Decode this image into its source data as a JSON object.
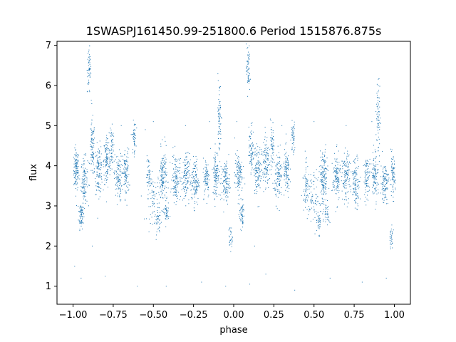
{
  "chart_data": {
    "type": "scatter",
    "title": "1SWASPJ161450.99-251800.6 Period 1515876.875s",
    "xlabel": "phase",
    "ylabel": "flux",
    "xlim": [
      -1.1,
      1.1
    ],
    "ylim": [
      0.55,
      7.1
    ],
    "xticks": [
      -1.0,
      -0.75,
      -0.5,
      -0.25,
      0.0,
      0.25,
      0.5,
      0.75,
      1.0
    ],
    "xtick_labels": [
      "−1.00",
      "−0.75",
      "−0.50",
      "−0.25",
      "0.00",
      "0.25",
      "0.50",
      "0.75",
      "1.00"
    ],
    "yticks": [
      1,
      2,
      3,
      4,
      5,
      6,
      7
    ],
    "ytick_labels": [
      "1",
      "2",
      "3",
      "4",
      "5",
      "6",
      "7"
    ],
    "grid": false,
    "color": "#1f77b4",
    "clusters": [
      {
        "x": -0.98,
        "y": 3.9,
        "sx": 0.008,
        "sy": 0.25,
        "n": 120
      },
      {
        "x": -0.95,
        "y": 2.8,
        "sx": 0.008,
        "sy": 0.18,
        "n": 70
      },
      {
        "x": -0.93,
        "y": 3.6,
        "sx": 0.01,
        "sy": 0.3,
        "n": 110
      },
      {
        "x": -0.9,
        "y": 6.4,
        "sx": 0.006,
        "sy": 0.3,
        "n": 60
      },
      {
        "x": -0.88,
        "y": 4.4,
        "sx": 0.008,
        "sy": 0.35,
        "n": 90
      },
      {
        "x": -0.84,
        "y": 3.9,
        "sx": 0.012,
        "sy": 0.3,
        "n": 120
      },
      {
        "x": -0.79,
        "y": 4.1,
        "sx": 0.01,
        "sy": 0.35,
        "n": 110
      },
      {
        "x": -0.76,
        "y": 4.5,
        "sx": 0.006,
        "sy": 0.3,
        "n": 60
      },
      {
        "x": -0.72,
        "y": 3.7,
        "sx": 0.012,
        "sy": 0.3,
        "n": 110
      },
      {
        "x": -0.67,
        "y": 3.8,
        "sx": 0.01,
        "sy": 0.3,
        "n": 100
      },
      {
        "x": -0.62,
        "y": 4.7,
        "sx": 0.006,
        "sy": 0.2,
        "n": 50
      },
      {
        "x": -0.53,
        "y": 3.8,
        "sx": 0.006,
        "sy": 0.2,
        "n": 40
      },
      {
        "x": -0.5,
        "y": 3.2,
        "sx": 0.02,
        "sy": 0.3,
        "n": 70
      },
      {
        "x": -0.47,
        "y": 2.6,
        "sx": 0.01,
        "sy": 0.15,
        "n": 40
      },
      {
        "x": -0.44,
        "y": 3.7,
        "sx": 0.012,
        "sy": 0.35,
        "n": 150
      },
      {
        "x": -0.42,
        "y": 2.8,
        "sx": 0.008,
        "sy": 0.15,
        "n": 40
      },
      {
        "x": -0.36,
        "y": 3.7,
        "sx": 0.012,
        "sy": 0.3,
        "n": 120
      },
      {
        "x": -0.3,
        "y": 3.7,
        "sx": 0.012,
        "sy": 0.3,
        "n": 120
      },
      {
        "x": -0.24,
        "y": 3.6,
        "sx": 0.012,
        "sy": 0.3,
        "n": 120
      },
      {
        "x": -0.17,
        "y": 3.7,
        "sx": 0.01,
        "sy": 0.25,
        "n": 80
      },
      {
        "x": -0.11,
        "y": 3.8,
        "sx": 0.01,
        "sy": 0.3,
        "n": 110
      },
      {
        "x": -0.09,
        "y": 5.2,
        "sx": 0.006,
        "sy": 0.5,
        "n": 70
      },
      {
        "x": -0.05,
        "y": 3.6,
        "sx": 0.012,
        "sy": 0.25,
        "n": 120
      },
      {
        "x": -0.02,
        "y": 2.2,
        "sx": 0.006,
        "sy": 0.15,
        "n": 30
      },
      {
        "x": 0.03,
        "y": 3.8,
        "sx": 0.012,
        "sy": 0.25,
        "n": 120
      },
      {
        "x": 0.05,
        "y": 2.8,
        "sx": 0.008,
        "sy": 0.18,
        "n": 60
      },
      {
        "x": 0.09,
        "y": 6.4,
        "sx": 0.006,
        "sy": 0.3,
        "n": 60
      },
      {
        "x": 0.11,
        "y": 4.4,
        "sx": 0.008,
        "sy": 0.3,
        "n": 80
      },
      {
        "x": 0.15,
        "y": 3.9,
        "sx": 0.012,
        "sy": 0.3,
        "n": 120
      },
      {
        "x": 0.2,
        "y": 4.1,
        "sx": 0.01,
        "sy": 0.35,
        "n": 110
      },
      {
        "x": 0.24,
        "y": 4.5,
        "sx": 0.006,
        "sy": 0.3,
        "n": 60
      },
      {
        "x": 0.28,
        "y": 3.7,
        "sx": 0.012,
        "sy": 0.3,
        "n": 110
      },
      {
        "x": 0.33,
        "y": 3.8,
        "sx": 0.01,
        "sy": 0.3,
        "n": 100
      },
      {
        "x": 0.37,
        "y": 4.7,
        "sx": 0.006,
        "sy": 0.2,
        "n": 50
      },
      {
        "x": 0.45,
        "y": 3.6,
        "sx": 0.01,
        "sy": 0.3,
        "n": 70
      },
      {
        "x": 0.5,
        "y": 3.2,
        "sx": 0.02,
        "sy": 0.3,
        "n": 70
      },
      {
        "x": 0.53,
        "y": 2.6,
        "sx": 0.01,
        "sy": 0.15,
        "n": 40
      },
      {
        "x": 0.56,
        "y": 3.7,
        "sx": 0.012,
        "sy": 0.35,
        "n": 150
      },
      {
        "x": 0.58,
        "y": 2.8,
        "sx": 0.008,
        "sy": 0.15,
        "n": 40
      },
      {
        "x": 0.64,
        "y": 3.7,
        "sx": 0.012,
        "sy": 0.3,
        "n": 120
      },
      {
        "x": 0.7,
        "y": 3.7,
        "sx": 0.012,
        "sy": 0.3,
        "n": 120
      },
      {
        "x": 0.76,
        "y": 3.6,
        "sx": 0.012,
        "sy": 0.3,
        "n": 110
      },
      {
        "x": 0.83,
        "y": 3.7,
        "sx": 0.01,
        "sy": 0.25,
        "n": 80
      },
      {
        "x": 0.88,
        "y": 3.8,
        "sx": 0.01,
        "sy": 0.3,
        "n": 100
      },
      {
        "x": 0.9,
        "y": 5.2,
        "sx": 0.006,
        "sy": 0.5,
        "n": 70
      },
      {
        "x": 0.94,
        "y": 3.6,
        "sx": 0.012,
        "sy": 0.25,
        "n": 110
      },
      {
        "x": 0.98,
        "y": 2.2,
        "sx": 0.006,
        "sy": 0.15,
        "n": 30
      },
      {
        "x": 0.99,
        "y": 3.7,
        "sx": 0.008,
        "sy": 0.25,
        "n": 80
      }
    ],
    "outliers": [
      [
        -0.99,
        1.5
      ],
      [
        -0.95,
        1.2
      ],
      [
        -0.8,
        1.25
      ],
      [
        -0.7,
        5.0
      ],
      [
        -0.6,
        1.0
      ],
      [
        -0.5,
        5.1
      ],
      [
        -0.42,
        1.0
      ],
      [
        -0.3,
        5.0
      ],
      [
        -0.2,
        1.1
      ],
      [
        -0.15,
        5.1
      ],
      [
        -0.05,
        1.0
      ],
      [
        0.02,
        5.1
      ],
      [
        0.1,
        1.05
      ],
      [
        0.2,
        1.3
      ],
      [
        0.3,
        5.0
      ],
      [
        0.38,
        0.9
      ],
      [
        0.5,
        5.1
      ],
      [
        0.6,
        1.2
      ],
      [
        0.7,
        5.0
      ],
      [
        0.8,
        1.1
      ],
      [
        0.86,
        5.1
      ],
      [
        0.95,
        1.2
      ],
      [
        -0.88,
        2.0
      ],
      [
        0.13,
        2.0
      ],
      [
        -0.55,
        4.9
      ]
    ]
  }
}
